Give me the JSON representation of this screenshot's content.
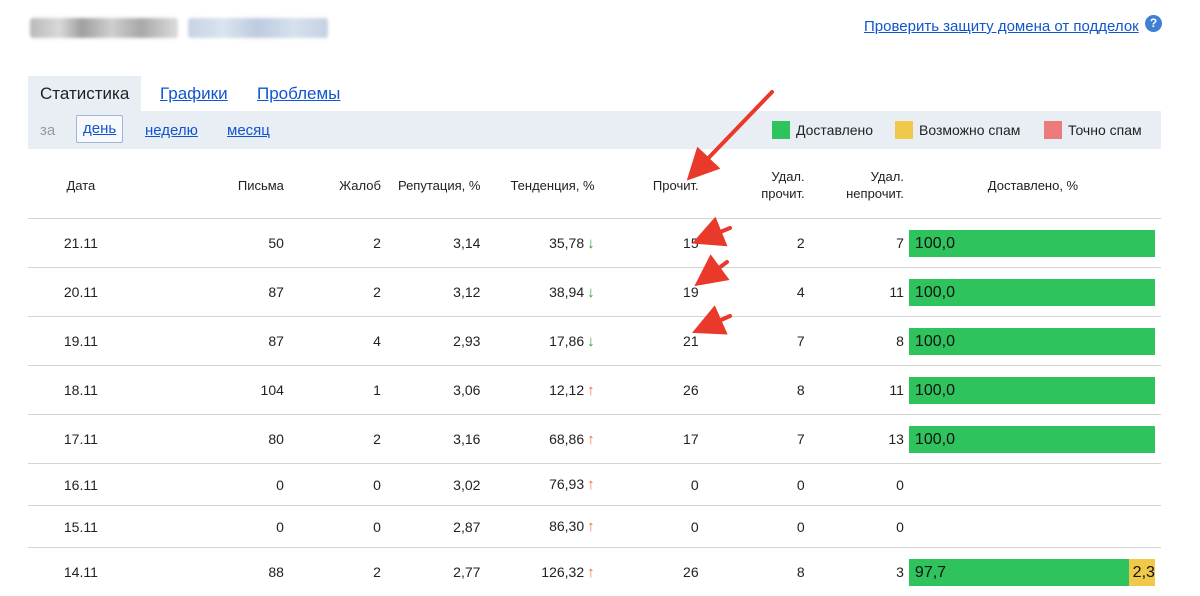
{
  "header": {
    "check_link": "Проверить защиту домена от подделок",
    "help_icon": "question-icon"
  },
  "tabs": [
    {
      "label": "Статистика",
      "active": true
    },
    {
      "label": "Графики",
      "active": false
    },
    {
      "label": "Проблемы",
      "active": false
    }
  ],
  "period": {
    "prefix": "за",
    "options": [
      "день",
      "неделю",
      "месяц"
    ],
    "selected": "день"
  },
  "legend": [
    {
      "label": "Доставлено",
      "color": "#2ec35c"
    },
    {
      "label": "Возможно спам",
      "color": "#f0c94b"
    },
    {
      "label": "Точно спам",
      "color": "#ee7b7b"
    }
  ],
  "table": {
    "columns": {
      "date": "Дата",
      "letters": "Письма",
      "complaints": "Жалоб",
      "reputation": "Репутация, %",
      "trend": "Тенденция, %",
      "read": "Прочит.",
      "del_read_1": "Удал.",
      "del_read_2": "прочит.",
      "del_unread_1": "Удал.",
      "del_unread_2": "непрочит.",
      "delivered": "Доставлено, %"
    },
    "rows": [
      {
        "date": "21.11",
        "letters": "50",
        "complaints": "2",
        "reputation": "3,14",
        "trend": "35,78",
        "trend_dir": "down",
        "read": "15",
        "del_read": "2",
        "del_unread": "7",
        "delivered": "100,0",
        "delivered_pct": 100,
        "spam": "",
        "spam_pct": 0
      },
      {
        "date": "20.11",
        "letters": "87",
        "complaints": "2",
        "reputation": "3,12",
        "trend": "38,94",
        "trend_dir": "down",
        "read": "19",
        "del_read": "4",
        "del_unread": "11",
        "delivered": "100,0",
        "delivered_pct": 100,
        "spam": "",
        "spam_pct": 0
      },
      {
        "date": "19.11",
        "letters": "87",
        "complaints": "4",
        "reputation": "2,93",
        "trend": "17,86",
        "trend_dir": "down",
        "read": "21",
        "del_read": "7",
        "del_unread": "8",
        "delivered": "100,0",
        "delivered_pct": 100,
        "spam": "",
        "spam_pct": 0
      },
      {
        "date": "18.11",
        "letters": "104",
        "complaints": "1",
        "reputation": "3,06",
        "trend": "12,12",
        "trend_dir": "up",
        "read": "26",
        "del_read": "8",
        "del_unread": "11",
        "delivered": "100,0",
        "delivered_pct": 100,
        "spam": "",
        "spam_pct": 0
      },
      {
        "date": "17.11",
        "letters": "80",
        "complaints": "2",
        "reputation": "3,16",
        "trend": "68,86",
        "trend_dir": "up",
        "read": "17",
        "del_read": "7",
        "del_unread": "13",
        "delivered": "100,0",
        "delivered_pct": 100,
        "spam": "",
        "spam_pct": 0
      },
      {
        "date": "16.11",
        "letters": "0",
        "complaints": "0",
        "reputation": "3,02",
        "trend": "76,93",
        "trend_dir": "up",
        "read": "0",
        "del_read": "0",
        "del_unread": "0",
        "delivered": "",
        "delivered_pct": 0,
        "spam": "",
        "spam_pct": 0
      },
      {
        "date": "15.11",
        "letters": "0",
        "complaints": "0",
        "reputation": "2,87",
        "trend": "86,30",
        "trend_dir": "up",
        "read": "0",
        "del_read": "0",
        "del_unread": "0",
        "delivered": "",
        "delivered_pct": 0,
        "spam": "",
        "spam_pct": 0
      },
      {
        "date": "14.11",
        "letters": "88",
        "complaints": "2",
        "reputation": "2,77",
        "trend": "126,32",
        "trend_dir": "up",
        "read": "26",
        "del_read": "8",
        "del_unread": "3",
        "delivered": "97,7",
        "delivered_pct": 97.7,
        "spam": "2,3",
        "spam_pct": 2.3
      }
    ]
  },
  "colors": {
    "link": "#1155cc",
    "trend_down": "#2ea043",
    "trend_up": "#f26b3a",
    "annotation_arrow": "#e8392b"
  }
}
